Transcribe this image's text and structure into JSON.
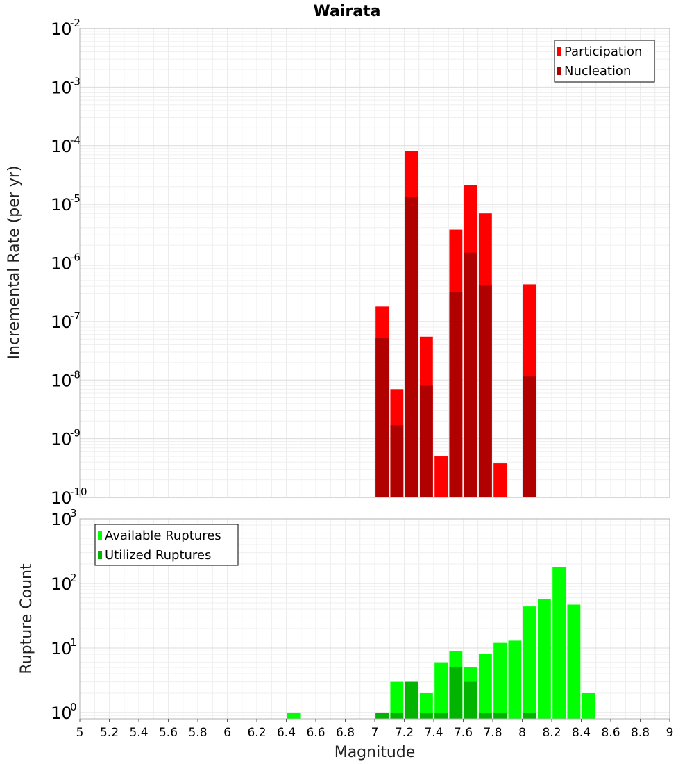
{
  "chart_data": [
    {
      "type": "bar",
      "title": "Wairata",
      "ylabel": "Incremental Rate (per yr)",
      "yscale": "log",
      "ylim": [
        1e-10,
        0.01
      ],
      "xlim": [
        5,
        9
      ],
      "bin_width": 0.1,
      "legend_position": "top-right",
      "grid": true,
      "series": [
        {
          "name": "Participation",
          "color": "#ff0000",
          "x": [
            7.05,
            7.15,
            7.25,
            7.35,
            7.45,
            7.55,
            7.65,
            7.75,
            7.85,
            8.05
          ],
          "values": [
            1.8e-07,
            7e-09,
            8e-05,
            5.5e-08,
            5e-10,
            3.7e-06,
            2.1e-05,
            7e-06,
            3.8e-10,
            4.3e-07
          ]
        },
        {
          "name": "Nucleation",
          "color": "#b00000",
          "x": [
            7.05,
            7.15,
            7.25,
            7.35,
            7.55,
            7.65,
            7.75,
            8.05
          ],
          "values": [
            5.2e-08,
            1.7e-09,
            1.35e-05,
            8e-09,
            3.2e-07,
            1.5e-06,
            4.1e-07,
            1.15e-08
          ]
        }
      ]
    },
    {
      "type": "bar",
      "ylabel": "Rupture Count",
      "xlabel": "Magnitude",
      "yscale": "log",
      "ylim": [
        0.8,
        1000
      ],
      "xlim": [
        5,
        9
      ],
      "bin_width": 0.1,
      "legend_position": "top-left",
      "grid": true,
      "x_ticks": [
        "5",
        "5.2",
        "5.4",
        "5.6",
        "5.8",
        "6",
        "6.2",
        "6.4",
        "6.6",
        "6.8",
        "7",
        "7.2",
        "7.4",
        "7.6",
        "7.8",
        "8",
        "8.2",
        "8.4",
        "8.6",
        "8.8",
        "9"
      ],
      "series": [
        {
          "name": "Available Ruptures",
          "color": "#00ff00",
          "x": [
            6.45,
            7.05,
            7.15,
            7.25,
            7.35,
            7.45,
            7.55,
            7.65,
            7.75,
            7.85,
            7.95,
            8.05,
            8.15,
            8.25,
            8.35,
            8.45
          ],
          "values": [
            1,
            1,
            3,
            3,
            2,
            6,
            9,
            5,
            8,
            12,
            13,
            44,
            57,
            180,
            47,
            2
          ]
        },
        {
          "name": "Utilized Ruptures",
          "color": "#00b400",
          "x": [
            7.05,
            7.15,
            7.25,
            7.35,
            7.45,
            7.55,
            7.65,
            7.75,
            7.85,
            8.05
          ],
          "values": [
            1,
            1,
            3,
            1,
            1,
            5,
            3,
            1,
            1,
            1
          ]
        }
      ]
    }
  ]
}
